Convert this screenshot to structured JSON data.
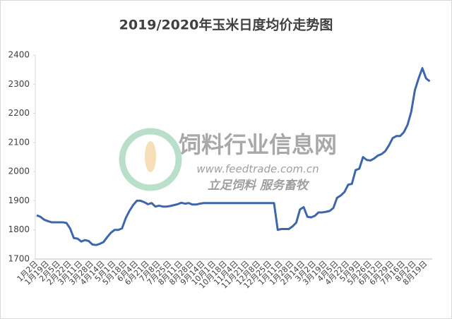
{
  "chart_data": {
    "type": "line",
    "title": "2019/2020年玉米日度均价走势图",
    "annotations": [
      "饲料行业信息网",
      "www.feedtrade.com.cn",
      "立足饲料 服务畜牧"
    ],
    "categories": [
      "1月2日",
      null,
      null,
      "1月19日",
      null,
      null,
      "2月5日",
      null,
      null,
      "2月22日",
      null,
      null,
      "3月11日",
      null,
      null,
      "3月28日",
      null,
      null,
      "4月14日",
      null,
      null,
      "5月1日",
      null,
      null,
      "5月18日",
      null,
      null,
      "6月4日",
      null,
      null,
      "6月21日",
      null,
      null,
      "7月8日",
      null,
      null,
      "7月25日",
      null,
      null,
      "8月11日",
      null,
      null,
      "8月28日",
      null,
      null,
      "9月14日",
      null,
      null,
      "10月1日",
      null,
      null,
      "10月18日",
      null,
      null,
      "11月4日",
      null,
      null,
      "11月21日",
      null,
      null,
      "12月8日",
      null,
      null,
      "12月25日",
      null,
      null,
      "1月11日",
      null,
      null,
      "1月28日",
      null,
      null,
      "2月14日",
      null,
      null,
      "3月2日",
      null,
      null,
      "3月19日",
      null,
      null,
      "4月5日",
      null,
      null,
      "4月22日",
      null,
      null,
      "5月9日",
      null,
      null,
      "5月26日",
      null,
      null,
      "6月12日",
      null,
      null,
      "6月29日",
      null,
      null,
      "7月16日",
      null,
      null,
      "8月2日",
      null,
      null,
      "8月19日",
      null
    ],
    "series": [
      {
        "name": "玉米日度均价",
        "color": "#3d66ab",
        "values": [
          1850,
          1845,
          1835,
          1830,
          1826,
          1826,
          1826,
          1826,
          1824,
          1805,
          1772,
          1770,
          1760,
          1765,
          1762,
          1750,
          1748,
          1752,
          1758,
          1775,
          1790,
          1800,
          1800,
          1805,
          1840,
          1865,
          1885,
          1900,
          1900,
          1895,
          1888,
          1892,
          1880,
          1883,
          1880,
          1880,
          1882,
          1885,
          1888,
          1893,
          1890,
          1892,
          1887,
          1887,
          1890,
          1892,
          1892,
          1892,
          1892,
          1892,
          1892,
          1892,
          1892,
          1892,
          1892,
          1892,
          1892,
          1892,
          1892,
          1892,
          1892,
          1892,
          1892,
          1892,
          1892,
          1800,
          1803,
          1803,
          1803,
          1812,
          1825,
          1870,
          1878,
          1845,
          1843,
          1848,
          1860,
          1860,
          1862,
          1865,
          1875,
          1910,
          1918,
          1930,
          1955,
          1958,
          2005,
          2010,
          2050,
          2040,
          2038,
          2045,
          2055,
          2060,
          2070,
          2090,
          2115,
          2122,
          2122,
          2135,
          2160,
          2205,
          2280,
          2320,
          2355,
          2320,
          2310
        ]
      }
    ],
    "ylim": [
      1700,
      2400
    ],
    "yticks": [
      1700,
      1800,
      1900,
      2000,
      2100,
      2200,
      2300,
      2400
    ],
    "grid": false
  }
}
